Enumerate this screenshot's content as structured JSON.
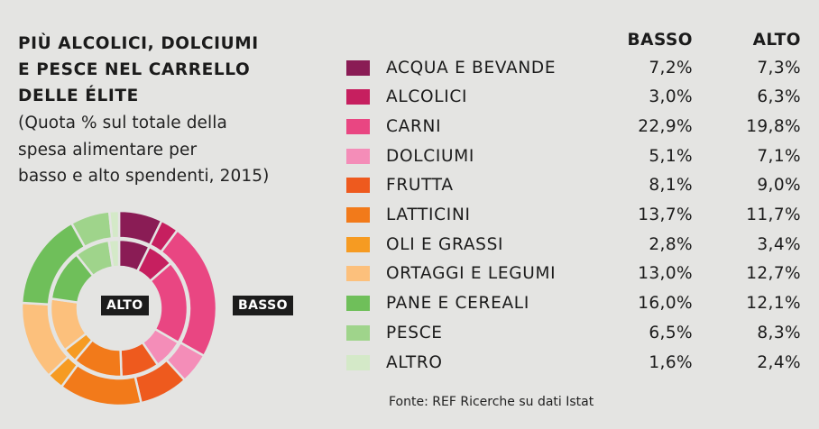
{
  "title_lines": [
    "Più alcolici, dolciumi",
    "e pesce nel carrello",
    "delle élite"
  ],
  "subtitle_lines": [
    "(Quota % sul totale della",
    "spesa alimentare per",
    "basso e alto spendenti, 2015)"
  ],
  "columns": {
    "basso": "BASSO",
    "alto": "ALTO"
  },
  "ring_labels": {
    "alto": "ALTO",
    "basso": "BASSO"
  },
  "source": "Fonte: REF Ricerche su dati Istat",
  "chart_data": {
    "type": "pie",
    "categories": [
      "ACQUA E BEVANDE",
      "ALCOLICI",
      "CARNI",
      "DOLCIUMI",
      "FRUTTA",
      "LATTICINI",
      "OLI E GRASSI",
      "ORTAGGI E LEGUMI",
      "PANE E CEREALI",
      "PESCE",
      "ALTRO"
    ],
    "colors": [
      "#8a1c55",
      "#c61f5f",
      "#e94682",
      "#f48db8",
      "#ee5a1e",
      "#f27a1a",
      "#f69b22",
      "#fcc07c",
      "#6fbf5a",
      "#9fd48b",
      "#d4e9c8"
    ],
    "series": [
      {
        "name": "BASSO",
        "labels": [
          "7,2%",
          "3,0%",
          "22,9%",
          "5,1%",
          "8,1%",
          "13,7%",
          "2,8%",
          "13,0%",
          "16,0%",
          "6,5%",
          "1,6%"
        ],
        "values": [
          7.2,
          3.0,
          22.9,
          5.1,
          8.1,
          13.7,
          2.8,
          13.0,
          16.0,
          6.5,
          1.6
        ]
      },
      {
        "name": "ALTO",
        "labels": [
          "7,3%",
          "6,3%",
          "19,8%",
          "7,1%",
          "9,0%",
          "11,7%",
          "3,4%",
          "12,7%",
          "12,1%",
          "8,3%",
          "2,4%"
        ],
        "values": [
          7.3,
          6.3,
          19.8,
          7.1,
          9.0,
          11.7,
          3.4,
          12.7,
          12.1,
          8.3,
          2.4
        ]
      }
    ]
  }
}
